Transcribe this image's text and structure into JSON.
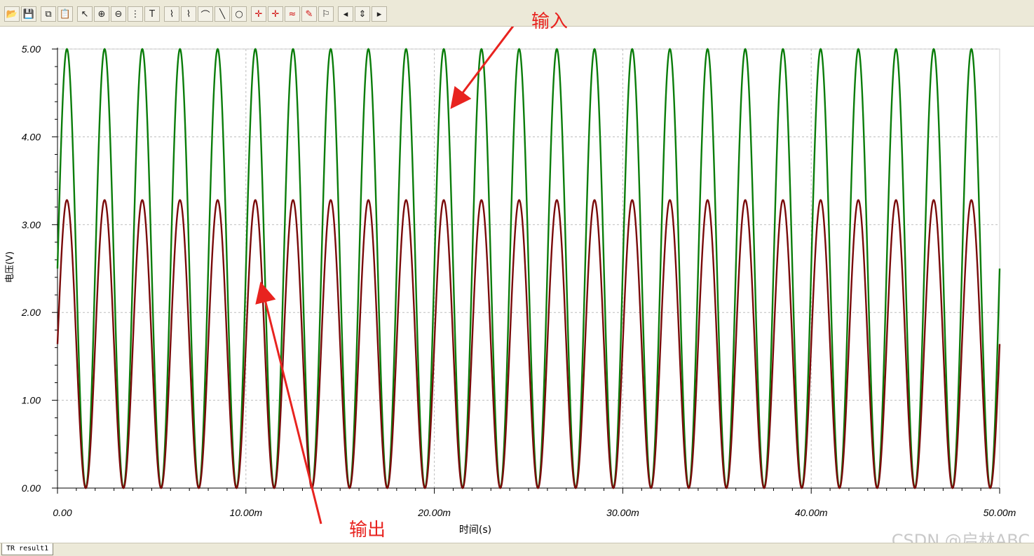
{
  "toolbar": {
    "buttons": [
      {
        "icon": "open-folder-icon",
        "glyph": "📂"
      },
      {
        "icon": "save-icon",
        "glyph": "💾"
      },
      {
        "icon": "copy-icon",
        "glyph": "⧉"
      },
      {
        "icon": "paste-icon",
        "glyph": "📋"
      },
      {
        "icon": "pointer-icon",
        "glyph": "↖"
      },
      {
        "icon": "zoom-in-icon",
        "glyph": "⊕"
      },
      {
        "icon": "zoom-100-icon",
        "glyph": "⊖"
      },
      {
        "icon": "grid-icon",
        "glyph": "⋮"
      },
      {
        "icon": "text-tool-icon",
        "glyph": "T"
      },
      {
        "icon": "curve-tool-1-icon",
        "glyph": "⌇"
      },
      {
        "icon": "curve-tool-2-icon",
        "glyph": "⌇"
      },
      {
        "icon": "curve-tool-3-icon",
        "glyph": "⌒"
      },
      {
        "icon": "line-tool-icon",
        "glyph": "╲"
      },
      {
        "icon": "circle-tool-icon",
        "glyph": "○"
      },
      {
        "icon": "cursor-a-icon",
        "glyph": "✛"
      },
      {
        "icon": "cursor-b-icon",
        "glyph": "✛"
      },
      {
        "icon": "waveform-icon",
        "glyph": "≈"
      },
      {
        "icon": "probe-icon",
        "glyph": "✎"
      },
      {
        "icon": "flag-icon",
        "glyph": "⚐"
      },
      {
        "icon": "arrow-left-icon",
        "glyph": "◂"
      },
      {
        "icon": "arrow-updown-icon",
        "glyph": "⇕"
      },
      {
        "icon": "arrow-right-icon",
        "glyph": "▸"
      }
    ]
  },
  "annotations": {
    "input_label": "输入",
    "output_label": "输出"
  },
  "tab": {
    "label": "TR result1"
  },
  "watermark": "CSDN @启林ABC",
  "colors": {
    "input_series": "#0a7d0a",
    "output_series": "#7a0a0a",
    "arrow": "#e8231f",
    "grid": "#bdbdbd"
  },
  "chart_data": {
    "type": "line",
    "title": "",
    "xlabel": "时间(s)",
    "ylabel": "电压(V)",
    "xlim": [
      0,
      0.05
    ],
    "ylim": [
      0,
      5
    ],
    "x_tick_labels": [
      "0.00",
      "10.00m",
      "20.00m",
      "30.00m",
      "40.00m",
      "50.00m"
    ],
    "y_tick_labels": [
      "0.00",
      "1.00",
      "2.00",
      "3.00",
      "4.00",
      "5.00"
    ],
    "grid": true,
    "legend": "none",
    "series": [
      {
        "label": "输入",
        "waveform": "sine",
        "frequency_hz": 500,
        "offset": 2.5,
        "amplitude": 2.5,
        "min": 0.0,
        "max": 5.0
      },
      {
        "label": "输出",
        "waveform": "sine",
        "frequency_hz": 500,
        "offset": 1.64,
        "amplitude": 1.64,
        "min": 0.0,
        "max": 3.28
      }
    ]
  }
}
